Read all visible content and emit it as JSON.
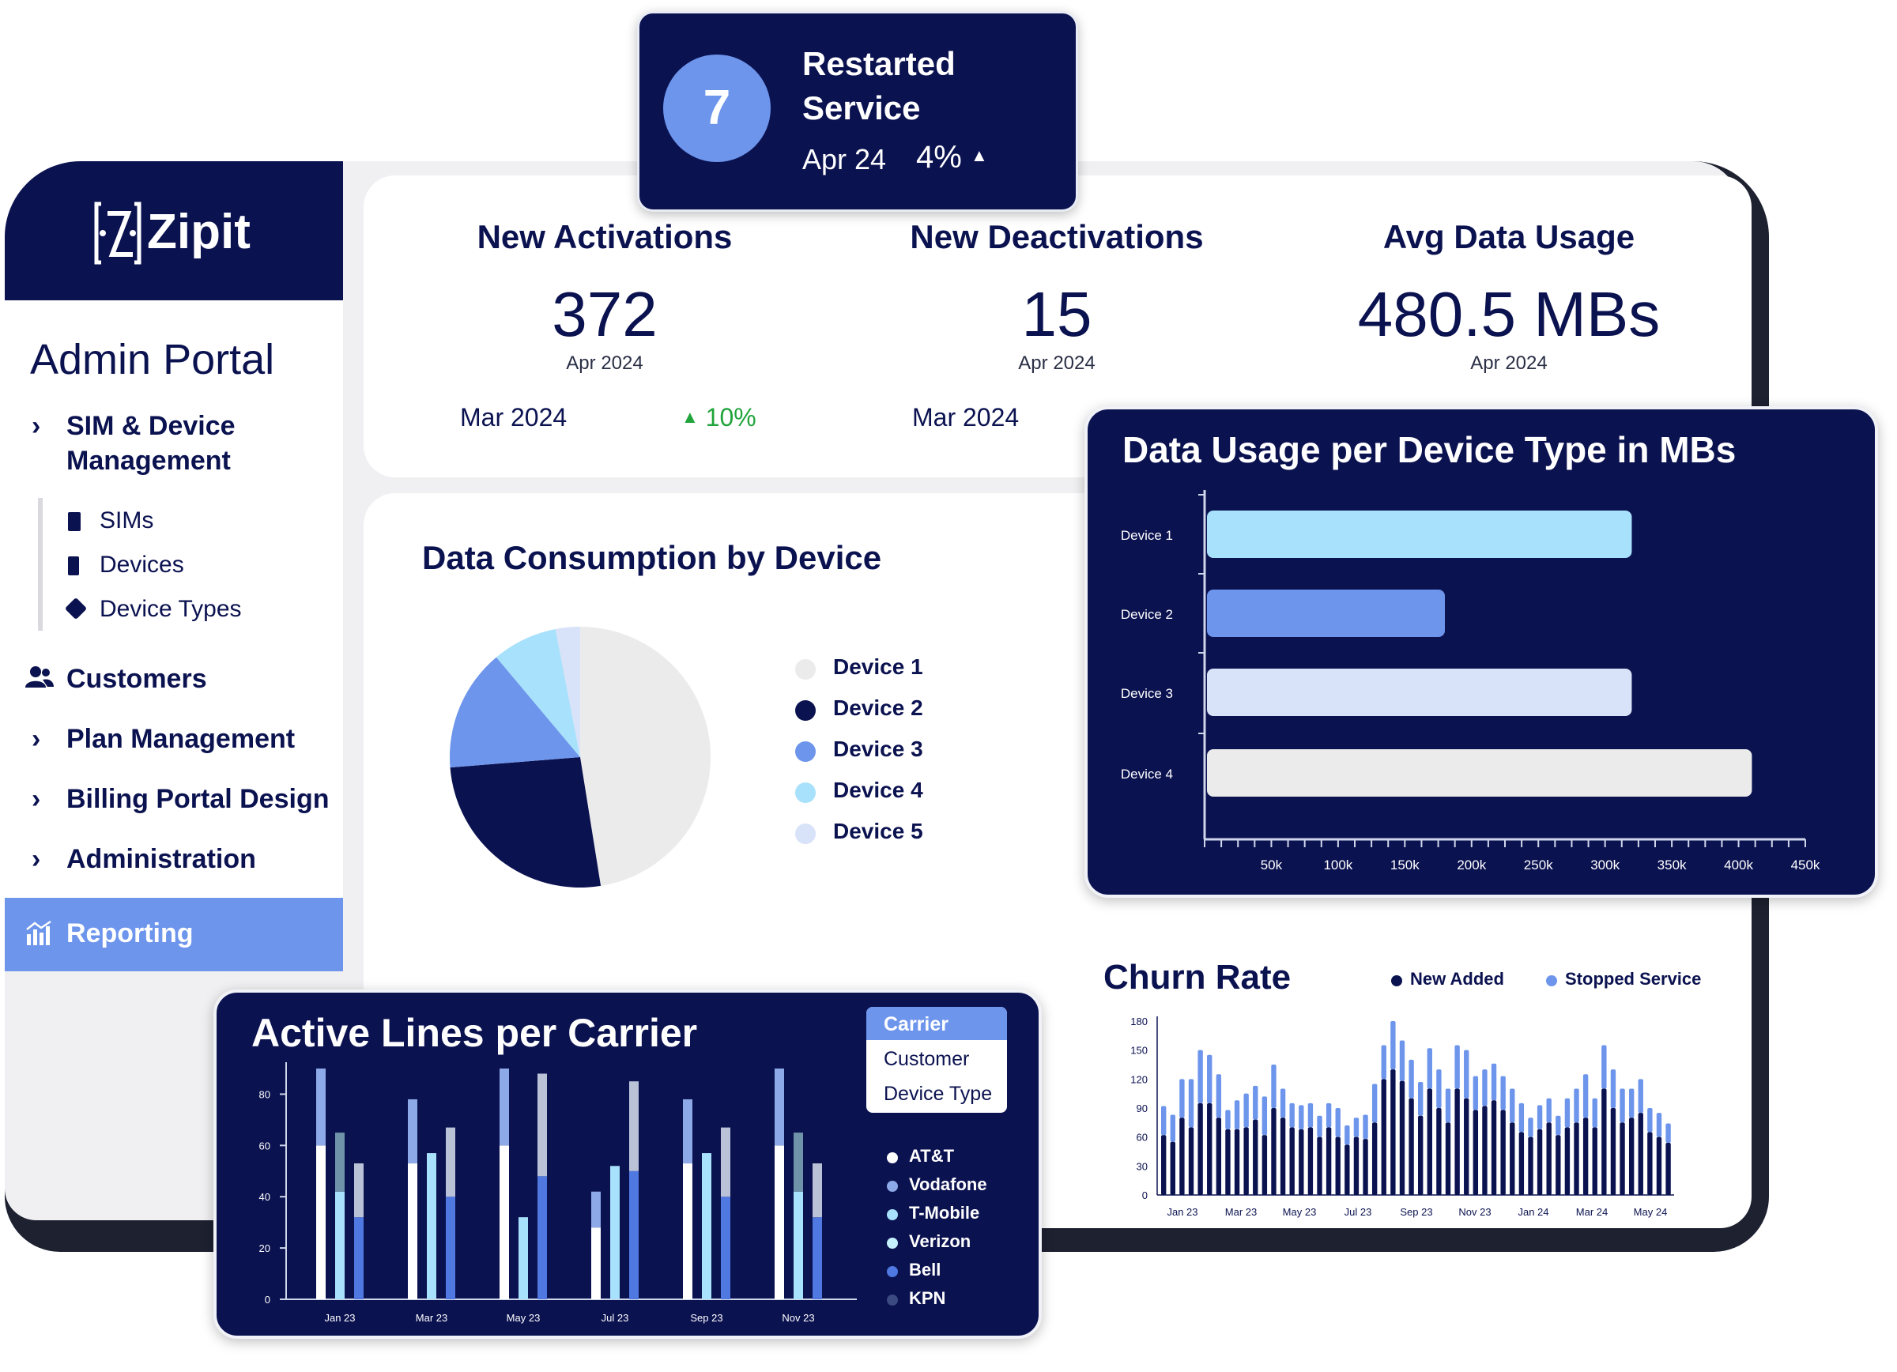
{
  "brand": {
    "name": "Zipit"
  },
  "sidebar": {
    "title": "Admin Portal",
    "sim_device": {
      "label": "SIM & Device\nManagement",
      "line1": "SIM & Device",
      "line2": "Management"
    },
    "subitems": [
      {
        "label": "SIMs",
        "icon": "sim-card-icon"
      },
      {
        "label": "Devices",
        "icon": "device-icon"
      },
      {
        "label": "Device Types",
        "icon": "tag-icon"
      }
    ],
    "customers": "Customers",
    "plan": "Plan Management",
    "billing": "Billing Portal Design",
    "admin": "Administration",
    "reporting": "Reporting"
  },
  "restarted": {
    "count": "7",
    "line1": "Restarted",
    "line2": "Service",
    "period": "Apr 24",
    "change": "4%"
  },
  "kpis": [
    {
      "title": "New Activations",
      "value": "372",
      "period": "Apr 2024",
      "prev": "Mar 2024",
      "change": "10%"
    },
    {
      "title": "New Deactivations",
      "value": "15",
      "period": "Apr 2024",
      "prev": "Mar 2024"
    },
    {
      "title": "Avg Data Usage",
      "value": "480.5 MBs",
      "period": "Apr 2024"
    }
  ],
  "colors": {
    "navy": "#0b1250",
    "accent": "#6d95ec",
    "light_blue": "#a8e1fb",
    "pale": "#d8e2f8",
    "light_gray": "#ebebeb",
    "green": "#21a43b"
  },
  "pie": {
    "title": "Data Consumption by Device",
    "chart_data": {
      "type": "pie",
      "labels": [
        "Device 1",
        "Device 2",
        "Device 3",
        "Device 4",
        "Device 5"
      ],
      "values": [
        47,
        26,
        15,
        8,
        3
      ],
      "colors": [
        "#ebebeb",
        "#0b1250",
        "#6d95ec",
        "#a8e1fb",
        "#d8e2f8"
      ]
    }
  },
  "hbar": {
    "title": "Data Usage per Device Type in MBs",
    "chart_data": {
      "type": "bar",
      "orientation": "horizontal",
      "categories": [
        "Device 1",
        "Device 2",
        "Device 3",
        "Device 4"
      ],
      "values": [
        320000,
        180000,
        320000,
        410000
      ],
      "colors": [
        "#a8e1fb",
        "#6d95ec",
        "#d8e2f8",
        "#ebebeb"
      ],
      "xlim": [
        0,
        450000
      ],
      "ticks": [
        "50k",
        "100k",
        "150k",
        "200k",
        "250k",
        "300k",
        "350k",
        "400k",
        "450k"
      ]
    }
  },
  "carrier": {
    "title": "Active Lines per Carrier",
    "menu": [
      "Carrier",
      "Customer",
      "Device Type"
    ],
    "menu_selected": "Carrier",
    "chart_data": {
      "type": "bar",
      "stacked": true,
      "categories": [
        "Jan 23",
        "Mar 23",
        "May 23",
        "Jul 23",
        "Sep 23",
        "Nov 23"
      ],
      "y_ticks": [
        "0",
        "20",
        "40",
        "60",
        "80"
      ],
      "ylim": [
        0,
        90
      ],
      "groups": [
        [
          [
            60,
            30
          ],
          [
            42,
            23
          ],
          [
            32,
            21
          ]
        ],
        [
          [
            53,
            25
          ],
          [
            57,
            0
          ],
          [
            40,
            27
          ]
        ],
        [
          [
            60,
            30
          ],
          [
            32,
            0
          ],
          [
            48,
            40
          ]
        ],
        [
          [
            28,
            14
          ],
          [
            52,
            0
          ],
          [
            50,
            35
          ]
        ],
        [
          [
            53,
            25
          ],
          [
            57,
            0
          ],
          [
            40,
            27
          ]
        ],
        [
          [
            60,
            30
          ],
          [
            42,
            23
          ],
          [
            32,
            21
          ]
        ]
      ],
      "legend": [
        "AT&T",
        "Vodafone",
        "T-Mobile",
        "Verizon",
        "Bell",
        "KPN"
      ],
      "legend_colors": [
        "#ffffff",
        "#8ea9e8",
        "#a8e1fb",
        "#c5f0fd",
        "#4f78e0",
        "#3b4a80"
      ]
    }
  },
  "churn": {
    "title": "Churn Rate",
    "chart_data": {
      "type": "bar",
      "stacked": true,
      "series": [
        {
          "name": "New Added",
          "color": "#0b1250",
          "values": [
            62,
            55,
            80,
            70,
            95,
            95,
            80,
            68,
            68,
            70,
            78,
            62,
            90,
            80,
            70,
            68,
            70,
            60,
            70,
            60,
            52,
            60,
            58,
            75,
            120,
            130,
            118,
            100,
            82,
            110,
            90,
            75,
            110,
            100,
            88,
            92,
            98,
            88,
            75,
            65,
            60,
            68,
            75,
            62,
            70,
            75,
            80,
            70,
            110,
            90,
            75,
            80,
            85,
            65,
            60,
            54
          ]
        },
        {
          "name": "Stopped Service",
          "color": "#6d95ec",
          "values": [
            30,
            28,
            40,
            50,
            55,
            50,
            45,
            20,
            30,
            35,
            35,
            40,
            45,
            30,
            25,
            25,
            25,
            22,
            25,
            30,
            20,
            20,
            25,
            40,
            35,
            50,
            42,
            40,
            35,
            42,
            40,
            35,
            45,
            50,
            35,
            38,
            38,
            35,
            35,
            30,
            20,
            25,
            25,
            20,
            30,
            35,
            45,
            30,
            45,
            40,
            35,
            30,
            35,
            25,
            25,
            20
          ]
        }
      ],
      "x_ticks": [
        "Jan 23",
        "Mar 23",
        "May 23",
        "Jul 23",
        "Sep 23",
        "Nov 23",
        "Jan 24",
        "Mar 24",
        "May 24"
      ],
      "y_ticks": [
        "0",
        "30",
        "60",
        "90",
        "120",
        "150",
        "180"
      ],
      "ylim": [
        0,
        180
      ]
    }
  }
}
